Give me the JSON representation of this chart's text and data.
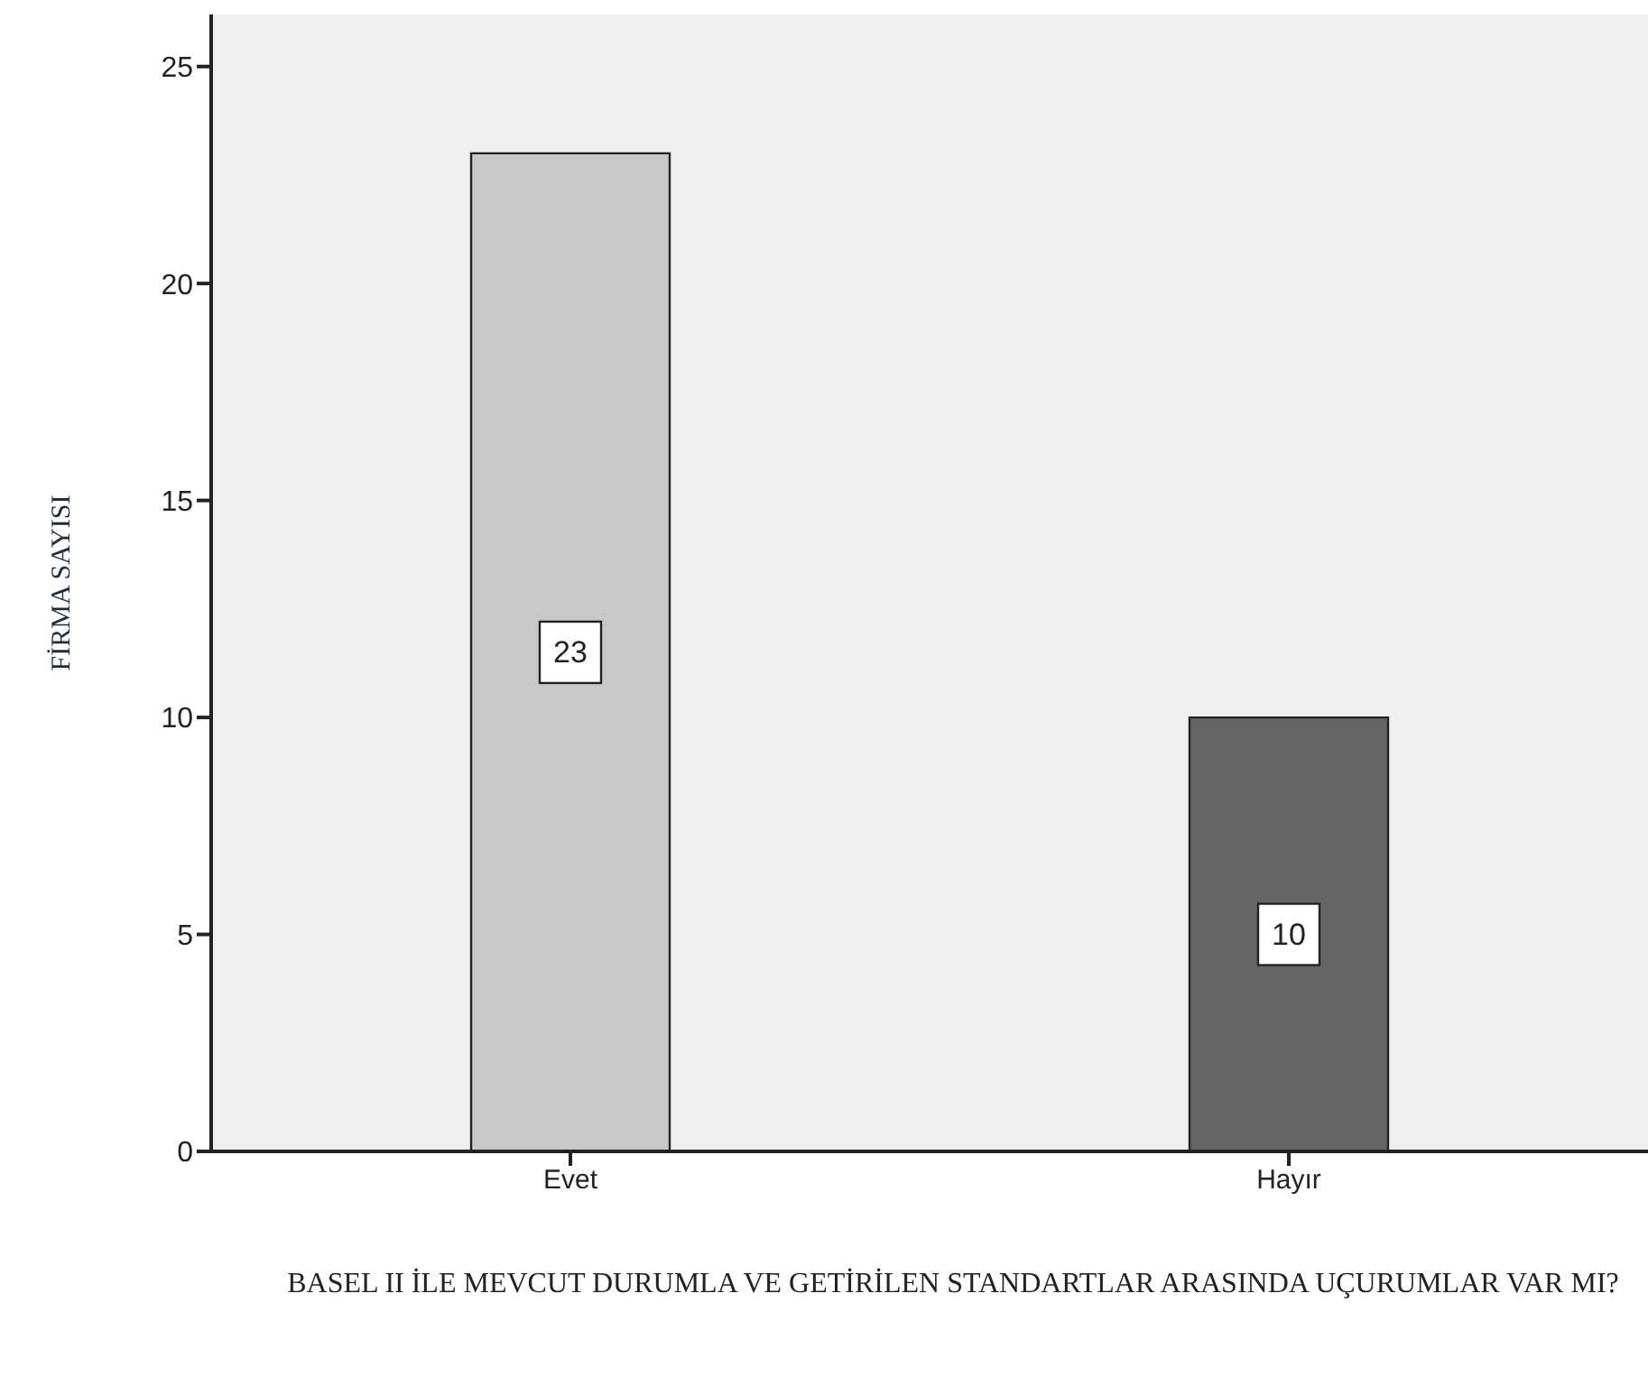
{
  "chart_data": {
    "type": "bar",
    "categories": [
      "Evet",
      "Hayır"
    ],
    "values": [
      23,
      10
    ],
    "colors": [
      "#c8c8c8",
      "#646464"
    ],
    "xlabel": "BASEL II İLE MEVCUT DURUMLA VE GETİRİLEN STANDARTLAR ARASINDA UÇURUMLAR VAR MI?",
    "ylabel": "FİRMA  SAYISI",
    "ylim": [
      0,
      26.2
    ],
    "yticks": [
      0,
      5,
      10,
      15,
      20,
      25
    ],
    "data_labels": true
  }
}
